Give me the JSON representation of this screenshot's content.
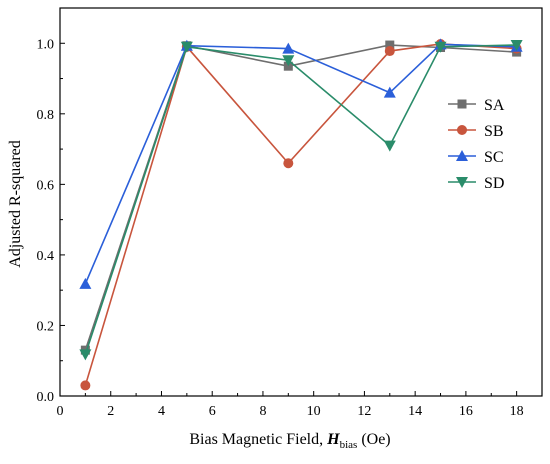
{
  "chart_data": {
    "type": "line",
    "xlabel": {
      "prefix": "Bias Magnetic Field, ",
      "symbol": "H",
      "subscript": "bias",
      "suffix": " (Oe)"
    },
    "ylabel": "Adjusted R-squared",
    "xlim": [
      0,
      19
    ],
    "ylim": [
      0,
      1.1
    ],
    "xticks": [
      "0",
      "2",
      "4",
      "6",
      "8",
      "10",
      "12",
      "14",
      "16",
      "18"
    ],
    "yticks": [
      "0.0",
      "0.2",
      "0.4",
      "0.6",
      "0.8",
      "1.0"
    ],
    "x": [
      1,
      5,
      9,
      13,
      15,
      18
    ],
    "grid": false,
    "legend_position": "right",
    "series": [
      {
        "name": "SA",
        "color": "#6e6e6e",
        "marker": "square",
        "values": [
          0.13,
          0.993,
          0.935,
          0.995,
          0.988,
          0.975
        ]
      },
      {
        "name": "SB",
        "color": "#c8553d",
        "marker": "circle",
        "values": [
          0.03,
          0.99,
          0.66,
          0.978,
          0.998,
          0.985
        ]
      },
      {
        "name": "SC",
        "color": "#2b5fd9",
        "marker": "triangle-up",
        "values": [
          0.318,
          0.993,
          0.985,
          0.86,
          0.997,
          0.99
        ]
      },
      {
        "name": "SD",
        "color": "#2a8c6a",
        "marker": "triangle-down",
        "values": [
          0.118,
          0.99,
          0.952,
          0.71,
          0.99,
          0.995
        ]
      }
    ]
  }
}
